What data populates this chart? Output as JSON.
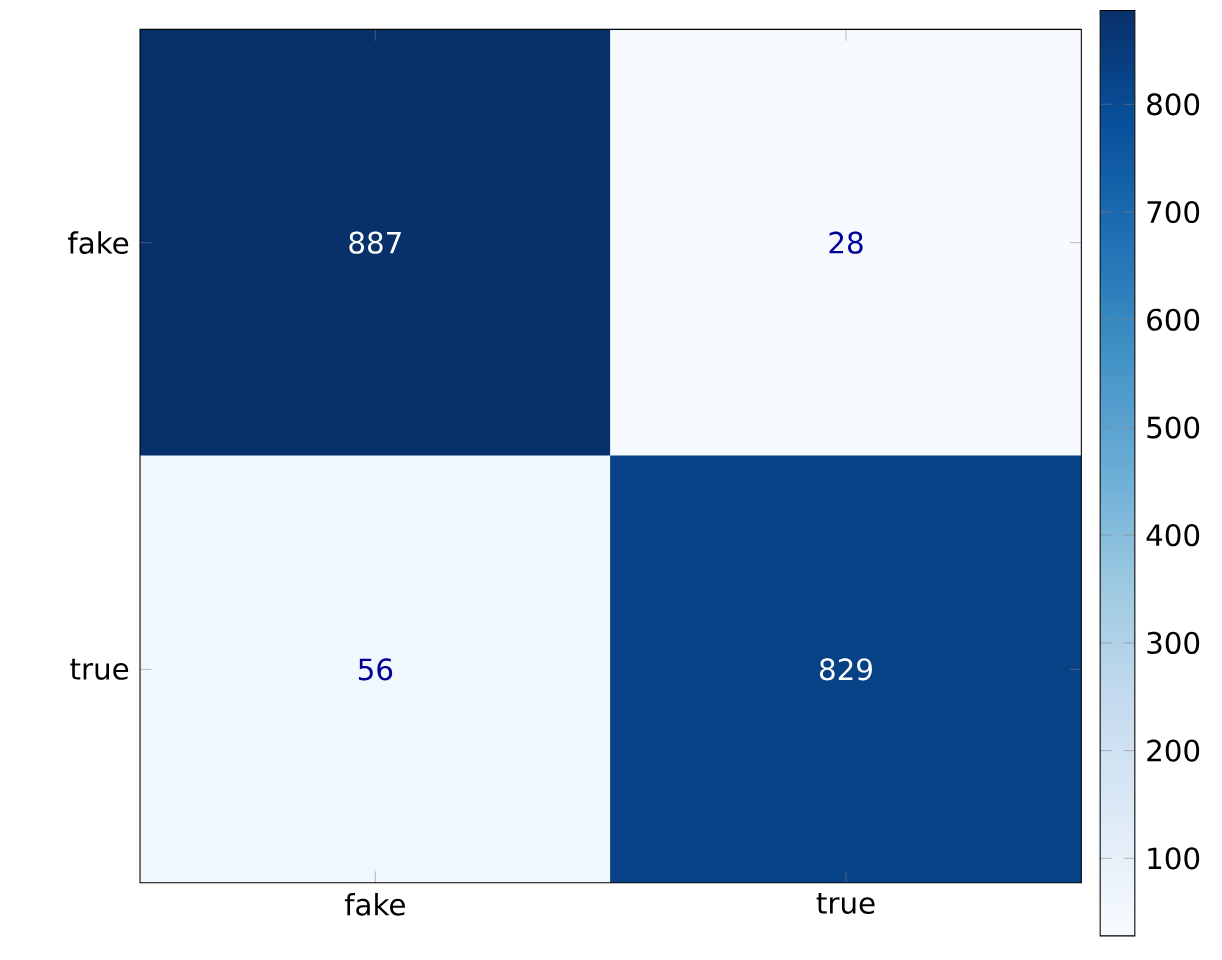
{
  "chart_data": {
    "type": "heatmap",
    "categories": [
      "fake",
      "true"
    ],
    "y_categories": [
      "fake",
      "true"
    ],
    "cells": [
      [
        887,
        28
      ],
      [
        56,
        829
      ]
    ],
    "clim": [
      28,
      887
    ],
    "cticks": [
      100,
      200,
      300,
      400,
      500,
      600,
      700,
      800
    ],
    "data_labels": true
  }
}
